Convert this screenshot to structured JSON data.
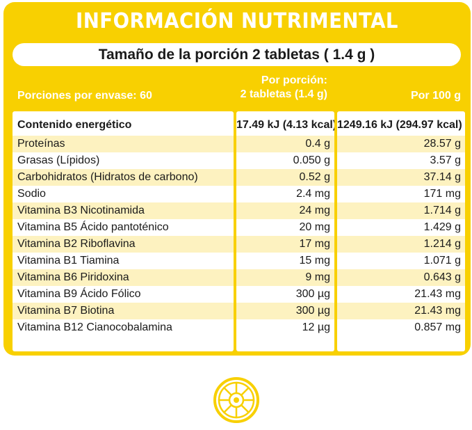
{
  "title": "INFORMACIÓN NUTRIMENTAL",
  "serving_size": "Tamaño de la porción 2 tabletas ( 1.4 g )",
  "headers": {
    "servings_per_container": "Porciones por envase: 60",
    "per_serving_line1": "Por porción:",
    "per_serving_line2": "2 tabletas (1.4 g)",
    "per_100g": "Por 100 g"
  },
  "rows": [
    {
      "name": "Contenido energético",
      "per_serving": "17.49 kJ (4.13 kcal)",
      "per_100g": "1249.16 kJ (294.97 kcal)"
    },
    {
      "name": "Proteínas",
      "per_serving": "0.4 g",
      "per_100g": "28.57 g"
    },
    {
      "name": "Grasas (Lípidos)",
      "per_serving": "0.050 g",
      "per_100g": "3.57 g"
    },
    {
      "name": "Carbohidratos (Hidratos de carbono)",
      "per_serving": "0.52 g",
      "per_100g": "37.14 g"
    },
    {
      "name": "Sodio",
      "per_serving": "2.4 mg",
      "per_100g": "171 mg"
    },
    {
      "name": "Vitamina B3 Nicotinamida",
      "per_serving": "24 mg",
      "per_100g": "1.714 g"
    },
    {
      "name": "Vitamina B5 Ácido pantoténico",
      "per_serving": "20 mg",
      "per_100g": "1.429 g"
    },
    {
      "name": "Vitamina B2 Riboflavina",
      "per_serving": "17 mg",
      "per_100g": "1.214 g"
    },
    {
      "name": "Vitamina B1 Tiamina",
      "per_serving": "15 mg",
      "per_100g": "1.071 g"
    },
    {
      "name": "Vitamina B6 Piridoxina",
      "per_serving": "9 mg",
      "per_100g": "0.643 g"
    },
    {
      "name": "Vitamina B9 Ácido Fólico",
      "per_serving": "300 µg",
      "per_100g": "21.43 mg"
    },
    {
      "name": "Vitamina B7 Biotina",
      "per_serving": "300 µg",
      "per_100g": "21.43 mg"
    },
    {
      "name": "Vitamina B12 Cianocobalamina",
      "per_serving": "12 µg",
      "per_100g": "0.857 mg"
    }
  ],
  "colors": {
    "accent": "#f8d001",
    "highlight_row": "#fdf2c0"
  },
  "emblem_icon": "citrus-slice-icon"
}
